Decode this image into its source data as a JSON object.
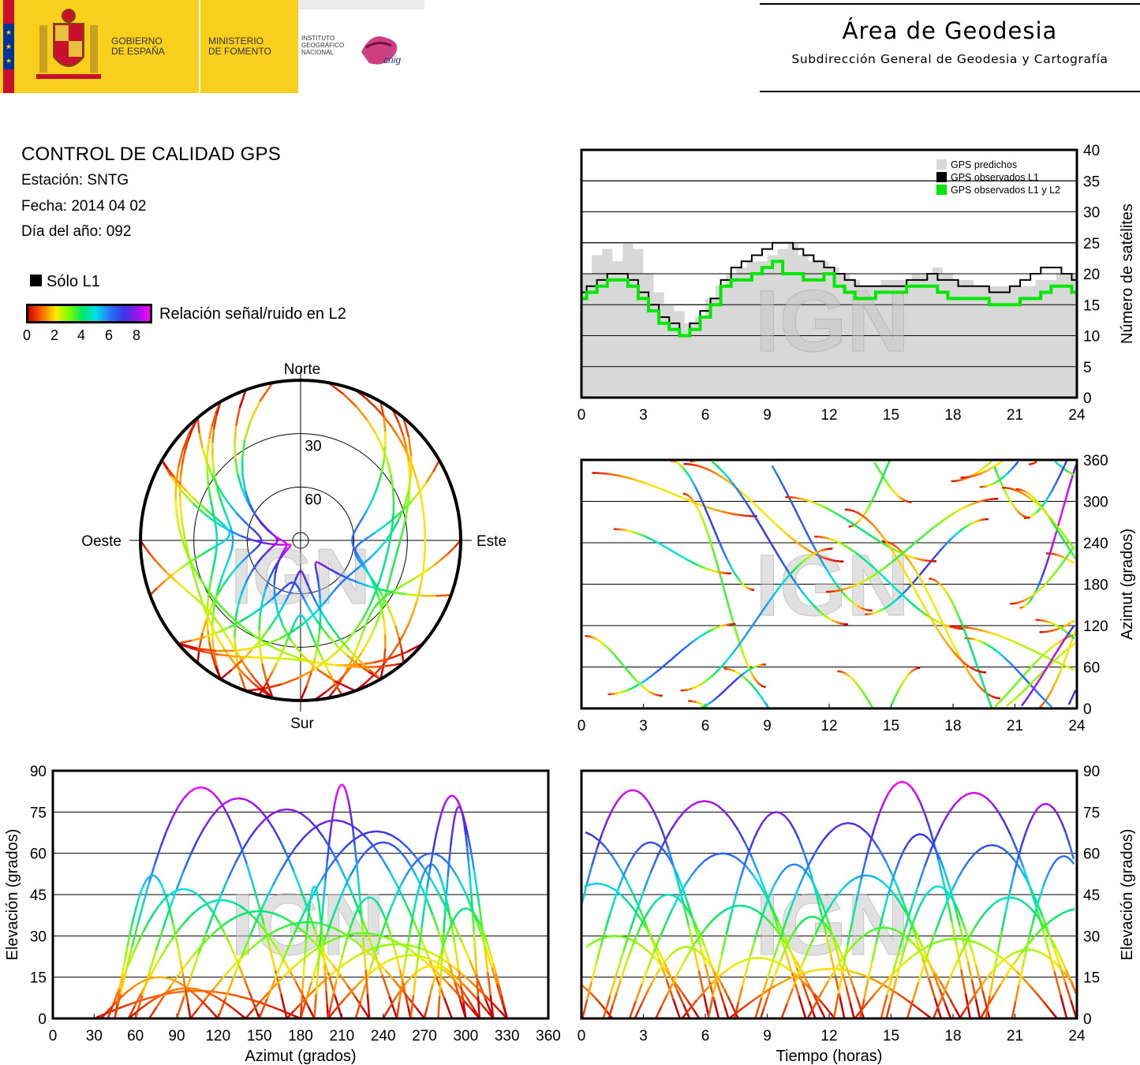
{
  "header": {
    "gov_line1": "GOBIERNO",
    "gov_line2": "DE ESPAÑA",
    "ministry_line1": "MINISTERIO",
    "ministry_line2": "DE FOMENTO",
    "ign_line1": "INSTITUTO",
    "ign_line2": "GEOGRÁFICO",
    "ign_line3": "NACIONAL",
    "cnig_logo": "cnig",
    "area_title": "Área de Geodesia",
    "area_subtitle": "Subdirección General de Geodesia y Cartografía"
  },
  "info": {
    "title": "CONTROL DE CALIDAD GPS",
    "station": "Estación: SNTG",
    "date": "Fecha: 2014 04 02",
    "doy": "Día del año: 092"
  },
  "legend": {
    "l1_only": "Sólo L1",
    "snr_label": "Relación señal/ruido en L2",
    "snr_ticks": [
      "0",
      "2",
      "4",
      "6",
      "8"
    ]
  },
  "watermark": "IGN",
  "colors": {
    "snr_scale": [
      "#d00000",
      "#ff6600",
      "#ffe800",
      "#7cff00",
      "#00e864",
      "#00e0e8",
      "#2878ff",
      "#3838e8",
      "#9018e8",
      "#ff00ff"
    ],
    "predicted": "#d8d8d8",
    "observed_l1": "#000000",
    "observed_l1l2": "#00e800",
    "header_yellow": "#f7cf1c"
  },
  "chart_data": [
    {
      "type": "area",
      "id": "satellite-count",
      "xlabel": "",
      "ylabel": "Número de satélites",
      "xlim": [
        0,
        24
      ],
      "ylim": [
        0,
        40
      ],
      "xticks": [
        "0",
        "3",
        "6",
        "9",
        "12",
        "15",
        "18",
        "21",
        "24"
      ],
      "yticks": [
        "0",
        "5",
        "10",
        "15",
        "20",
        "25",
        "30",
        "35",
        "40"
      ],
      "grid": "horizontal",
      "legend_position": "top-right",
      "series": [
        {
          "name": "GPS predichos",
          "x": [
            0,
            0.5,
            1,
            1.5,
            2,
            2.5,
            3,
            3.5,
            4,
            4.5,
            5,
            5.5,
            6,
            6.5,
            7,
            7.5,
            8,
            8.5,
            9,
            9.5,
            10,
            10.5,
            11,
            11.5,
            12,
            12.5,
            13,
            13.5,
            14,
            14.5,
            15,
            15.5,
            16,
            16.5,
            17,
            17.5,
            18,
            18.5,
            19,
            19.5,
            20,
            20.5,
            21,
            21.5,
            22,
            22.5,
            23,
            23.5,
            24
          ],
          "values": [
            20,
            23,
            24,
            22,
            25,
            24,
            20,
            17,
            15,
            14,
            12,
            13,
            16,
            18,
            20,
            21,
            22,
            22,
            23,
            24,
            25,
            23,
            22,
            22,
            21,
            20,
            19,
            18,
            18,
            19,
            19,
            19,
            20,
            20,
            21,
            20,
            19,
            19,
            18,
            18,
            18,
            18,
            18,
            18,
            19,
            19,
            20,
            20,
            19
          ]
        },
        {
          "name": "GPS observados L1",
          "x": [
            0,
            0.5,
            1,
            1.5,
            2,
            2.5,
            3,
            3.5,
            4,
            4.5,
            5,
            5.5,
            6,
            6.5,
            7,
            7.5,
            8,
            8.5,
            9,
            9.5,
            10,
            10.5,
            11,
            11.5,
            12,
            12.5,
            13,
            13.5,
            14,
            14.5,
            15,
            15.5,
            16,
            16.5,
            17,
            17.5,
            18,
            18.5,
            19,
            19.5,
            20,
            20.5,
            21,
            21.5,
            22,
            22.5,
            23,
            23.5,
            24
          ],
          "values": [
            17,
            18,
            19,
            20,
            20,
            19,
            17,
            15,
            13,
            12,
            10,
            12,
            14,
            16,
            19,
            21,
            22,
            23,
            24,
            25,
            25,
            24,
            23,
            22,
            21,
            20,
            19,
            18,
            18,
            18,
            18,
            18,
            19,
            19,
            20,
            19,
            19,
            18,
            18,
            18,
            17,
            17,
            18,
            19,
            20,
            21,
            21,
            20,
            19
          ]
        },
        {
          "name": "GPS observados L1 y L2",
          "x": [
            0,
            0.5,
            1,
            1.5,
            2,
            2.5,
            3,
            3.5,
            4,
            4.5,
            5,
            5.5,
            6,
            6.5,
            7,
            7.5,
            8,
            8.5,
            9,
            9.5,
            10,
            10.5,
            11,
            11.5,
            12,
            12.5,
            13,
            13.5,
            14,
            14.5,
            15,
            15.5,
            16,
            16.5,
            17,
            17.5,
            18,
            18.5,
            19,
            19.5,
            20,
            20.5,
            21,
            21.5,
            22,
            22.5,
            23,
            23.5,
            24
          ],
          "values": [
            16,
            17,
            18,
            19,
            19,
            18,
            16,
            14,
            12,
            11,
            10,
            11,
            13,
            15,
            18,
            19,
            19,
            20,
            21,
            22,
            20,
            20,
            19,
            19,
            20,
            18,
            17,
            16,
            16,
            17,
            17,
            17,
            18,
            18,
            18,
            17,
            16,
            16,
            16,
            16,
            15,
            15,
            15,
            16,
            16,
            17,
            18,
            18,
            17
          ]
        }
      ]
    },
    {
      "type": "scatter",
      "id": "azimuth-time",
      "xlabel": "",
      "ylabel": "Azimut (grados)",
      "xlim": [
        0,
        24
      ],
      "ylim": [
        0,
        360
      ],
      "xticks": [
        "0",
        "3",
        "6",
        "9",
        "12",
        "15",
        "18",
        "21",
        "24"
      ],
      "yticks": [
        "0",
        "60",
        "120",
        "180",
        "240",
        "300",
        "360"
      ],
      "grid": "horizontal",
      "color_scale": "snr_l2"
    },
    {
      "type": "scatter",
      "id": "elevation-azimuth",
      "xlabel": "Azimut (grados)",
      "ylabel": "Elevación (grados)",
      "xlim": [
        0,
        360
      ],
      "ylim": [
        0,
        90
      ],
      "xticks": [
        "0",
        "30",
        "60",
        "90",
        "120",
        "150",
        "180",
        "210",
        "240",
        "270",
        "300",
        "330",
        "360"
      ],
      "yticks": [
        "0",
        "15",
        "30",
        "45",
        "60",
        "75",
        "90"
      ],
      "grid": "horizontal",
      "color_scale": "snr_l2"
    },
    {
      "type": "scatter",
      "id": "elevation-time",
      "xlabel": "Tiempo (horas)",
      "ylabel": "Elevación (grados)",
      "xlim": [
        0,
        24
      ],
      "ylim": [
        0,
        90
      ],
      "xticks": [
        "0",
        "3",
        "6",
        "9",
        "12",
        "15",
        "18",
        "21",
        "24"
      ],
      "yticks": [
        "0",
        "15",
        "30",
        "45",
        "60",
        "75",
        "90"
      ],
      "grid": "horizontal",
      "color_scale": "snr_l2"
    },
    {
      "type": "scatter",
      "id": "skyplot",
      "directions": {
        "north": "Norte",
        "south": "Sur",
        "east": "Este",
        "west": "Oeste"
      },
      "elevation_rings": [
        "30",
        "60"
      ],
      "color_scale": "snr_l2"
    }
  ]
}
